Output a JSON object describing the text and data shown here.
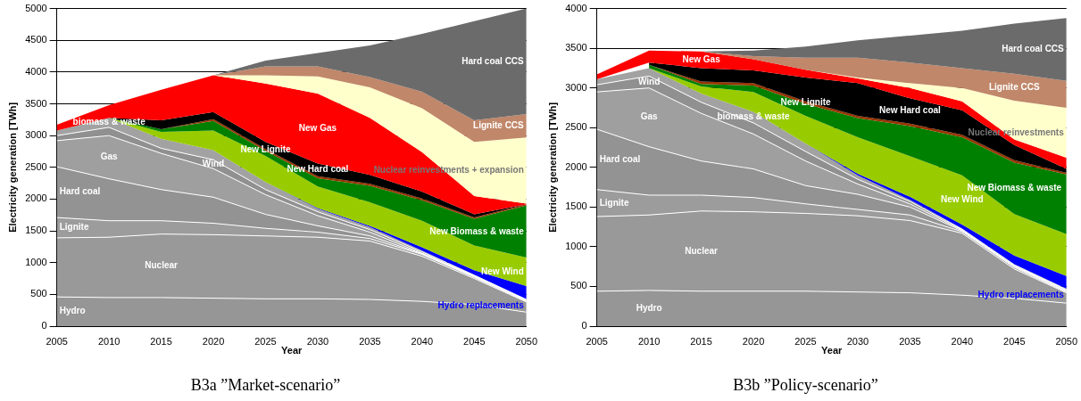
{
  "chart_data": [
    {
      "type": "area",
      "stacked": true,
      "title": "B3a ”Market-scenario”",
      "xlabel": "Year",
      "ylabel": "Electricity generation [TWh]",
      "x": [
        2005,
        2010,
        2015,
        2020,
        2025,
        2030,
        2035,
        2040,
        2045,
        2050
      ],
      "xlim": [
        2005,
        2050
      ],
      "xticks": [
        2005,
        2010,
        2015,
        2020,
        2025,
        2030,
        2035,
        2040,
        2045,
        2050
      ],
      "ylim": [
        0,
        5000
      ],
      "yticks": [
        0,
        500,
        1000,
        1500,
        2000,
        2500,
        3000,
        3500,
        4000,
        4500,
        5000
      ],
      "grid": "y",
      "legend": false,
      "series": [
        {
          "name": "Hydro",
          "color": "#969696",
          "values": [
            460,
            450,
            450,
            440,
            430,
            430,
            420,
            390,
            340,
            220
          ]
        },
        {
          "name": "Nuclear",
          "color": "#999999",
          "values": [
            930,
            950,
            1000,
            1000,
            990,
            970,
            920,
            710,
            410,
            160
          ]
        },
        {
          "name": "Lignite",
          "color": "#9c9c9c",
          "values": [
            320,
            260,
            210,
            180,
            120,
            80,
            40,
            30,
            20,
            10
          ]
        },
        {
          "name": "Hard coal",
          "color": "#939393",
          "values": [
            800,
            660,
            490,
            410,
            220,
            100,
            40,
            10,
            10,
            10
          ]
        },
        {
          "name": "Gas",
          "color": "#9f9f9f",
          "values": [
            410,
            680,
            570,
            450,
            310,
            160,
            60,
            10,
            10,
            10
          ]
        },
        {
          "name": "Wind",
          "color": "#909090",
          "values": [
            80,
            130,
            80,
            140,
            80,
            60,
            40,
            20,
            10,
            10
          ]
        },
        {
          "name": "biomass & waste",
          "color": "#a2a2a2",
          "values": [
            80,
            150,
            150,
            150,
            120,
            50,
            40,
            20,
            10,
            0
          ]
        },
        {
          "name": "Hydro replacements",
          "color": "#0000ff",
          "values": [
            null,
            null,
            null,
            null,
            0,
            10,
            20,
            50,
            70,
            210
          ]
        },
        {
          "name": "New Wind",
          "color": "#99cc00",
          "values": [
            null,
            0,
            110,
            310,
            410,
            340,
            370,
            420,
            390,
            450
          ]
        },
        {
          "name": "New Biomass & waste",
          "color": "#008000",
          "values": [
            null,
            0,
            40,
            150,
            80,
            130,
            260,
            320,
            420,
            820
          ]
        },
        {
          "name": "New Lignite",
          "color": "#993300",
          "values": [
            null,
            null,
            0,
            30,
            30,
            30,
            30,
            30,
            20,
            20
          ]
        },
        {
          "name": "New Hard coal",
          "color": "#000000",
          "values": [
            null,
            0,
            140,
            110,
            110,
            200,
            140,
            110,
            50,
            0
          ]
        },
        {
          "name": "New Gas",
          "color": "#ff0000",
          "values": [
            90,
            200,
            480,
            580,
            920,
            1100,
            900,
            620,
            290,
            10
          ]
        },
        {
          "name": "Nuclear reinvestments + expansion",
          "color": "#ffffcc",
          "values": [
            null,
            null,
            null,
            0,
            130,
            270,
            480,
            690,
            850,
            1040
          ]
        },
        {
          "name": "Lignite CCS",
          "color": "#c0876a",
          "values": [
            null,
            null,
            null,
            0,
            140,
            160,
            160,
            260,
            340,
            370
          ]
        },
        {
          "name": "Hard coal CCS",
          "color": "#6b6b6b",
          "values": [
            null,
            null,
            null,
            0,
            90,
            210,
            500,
            910,
            1560,
            1660
          ]
        }
      ]
    },
    {
      "type": "area",
      "stacked": true,
      "title": "B3b ”Policy-scenario”",
      "xlabel": "Year",
      "ylabel": "Electricity generation [TWh]",
      "x": [
        2005,
        2010,
        2015,
        2020,
        2025,
        2030,
        2035,
        2040,
        2045,
        2050
      ],
      "xlim": [
        2005,
        2050
      ],
      "xticks": [
        2005,
        2010,
        2015,
        2020,
        2025,
        2030,
        2035,
        2040,
        2045,
        2050
      ],
      "ylim": [
        0,
        4000
      ],
      "yticks": [
        0,
        500,
        1000,
        1500,
        2000,
        2500,
        3000,
        3500,
        4000
      ],
      "grid": "y",
      "legend": false,
      "series": [
        {
          "name": "Hydro",
          "color": "#969696",
          "values": [
            440,
            450,
            440,
            440,
            440,
            430,
            420,
            390,
            350,
            290
          ]
        },
        {
          "name": "Nuclear",
          "color": "#999999",
          "values": [
            940,
            950,
            1010,
            1000,
            980,
            960,
            910,
            780,
            370,
            130
          ]
        },
        {
          "name": "Lignite",
          "color": "#9c9c9c",
          "values": [
            340,
            250,
            200,
            180,
            120,
            80,
            70,
            20,
            20,
            10
          ]
        },
        {
          "name": "Hard coal",
          "color": "#939393",
          "values": [
            760,
            610,
            430,
            360,
            230,
            190,
            100,
            10,
            10,
            10
          ]
        },
        {
          "name": "Gas",
          "color": "#9f9f9f",
          "values": [
            470,
            740,
            600,
            440,
            310,
            130,
            40,
            10,
            10,
            10
          ]
        },
        {
          "name": "Wind",
          "color": "#909090",
          "values": [
            90,
            150,
            140,
            140,
            120,
            60,
            30,
            10,
            10,
            10
          ]
        },
        {
          "name": "biomass & waste",
          "color": "#a2a2a2",
          "values": [
            70,
            100,
            110,
            140,
            100,
            50,
            20,
            10,
            10,
            10
          ]
        },
        {
          "name": "Hydro replacements",
          "color": "#0000ff",
          "values": [
            null,
            null,
            null,
            null,
            0,
            20,
            40,
            50,
            110,
            160
          ]
        },
        {
          "name": "New Wind",
          "color": "#99cc00",
          "values": [
            null,
            0,
            90,
            250,
            350,
            460,
            510,
            620,
            520,
            530
          ]
        },
        {
          "name": "New Biomass & waste",
          "color": "#008000",
          "values": [
            null,
            40,
            30,
            80,
            150,
            240,
            380,
            480,
            650,
            750
          ]
        },
        {
          "name": "New Lignite",
          "color": "#993300",
          "values": [
            null,
            0,
            30,
            30,
            30,
            30,
            30,
            30,
            30,
            20
          ]
        },
        {
          "name": "New Hard coal",
          "color": "#000000",
          "values": [
            null,
            30,
            170,
            160,
            300,
            410,
            320,
            310,
            190,
            50
          ]
        },
        {
          "name": "New Gas",
          "color": "#ff0000",
          "values": [
            60,
            150,
            210,
            140,
            100,
            60,
            130,
            110,
            70,
            140
          ]
        },
        {
          "name": "Nuclear reinvestments",
          "color": "#ffffcc",
          "values": [
            null,
            null,
            null,
            null,
            0,
            10,
            60,
            170,
            490,
            630
          ]
        },
        {
          "name": "Lignite CCS",
          "color": "#c0876a",
          "values": [
            null,
            null,
            0,
            40,
            150,
            250,
            260,
            250,
            340,
            340
          ]
        },
        {
          "name": "Hard coal CCS",
          "color": "#6b6b6b",
          "values": [
            null,
            null,
            0,
            70,
            140,
            220,
            340,
            470,
            630,
            790
          ]
        }
      ]
    }
  ]
}
